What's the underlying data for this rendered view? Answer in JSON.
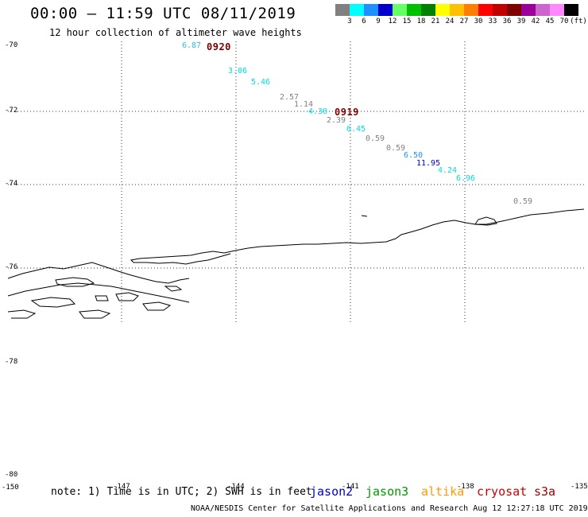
{
  "header": {
    "title": "00:00 — 11:59 UTC 08/11/2019",
    "subtitle": "12 hour collection of altimeter wave heights"
  },
  "color_scale": {
    "colors": [
      "#808080",
      "#00ffff",
      "#1e90ff",
      "#0000cd",
      "#66ff66",
      "#00c000",
      "#008000",
      "#ffff00",
      "#ffc000",
      "#ff8000",
      "#ff0000",
      "#c00000",
      "#800000",
      "#9b009b",
      "#cc66cc",
      "#ff88ff",
      "#000000"
    ],
    "labels": [
      "3",
      "6",
      "9",
      "12",
      "15",
      "18",
      "21",
      "24",
      "27",
      "30",
      "33",
      "36",
      "39",
      "42",
      "45",
      "70",
      "(ft)"
    ]
  },
  "lat_labels": [
    "-70",
    "-72",
    "-74",
    "-76",
    "-78",
    "-80"
  ],
  "lon_labels": [
    "-150",
    "-147",
    "-144",
    "-141",
    "-138",
    "-135"
  ],
  "measurements": [
    {
      "value": "6.87",
      "color": "#33bbdd"
    },
    {
      "value": "3.06",
      "color": "#00e0e0"
    },
    {
      "value": "5.46",
      "color": "#00e0e0"
    },
    {
      "value": "2.57",
      "color": "#808080"
    },
    {
      "value": "1.14",
      "color": "#808080"
    },
    {
      "value": "4.30",
      "color": "#00e0e0"
    },
    {
      "value": "2.39",
      "color": "#808080"
    },
    {
      "value": "6.45",
      "color": "#00e0e0"
    },
    {
      "value": "0.59",
      "color": "#808080"
    },
    {
      "value": "0.59",
      "color": "#808080"
    },
    {
      "value": "6.50",
      "color": "#1e90ff"
    },
    {
      "value": "11.95",
      "color": "#0000cd"
    },
    {
      "value": "4.24",
      "color": "#00e0e0"
    },
    {
      "value": "6.96",
      "color": "#00e0e0"
    },
    {
      "value": "0.59",
      "color": "#808080"
    }
  ],
  "time_labels": [
    "0920",
    "0919"
  ],
  "note": "note: 1) Time is in UTC; 2) SWH is in feet",
  "satellites": [
    {
      "name": "jason2",
      "color": "#0000cc"
    },
    {
      "name": "jason3",
      "color": "#009900"
    },
    {
      "name": "altika",
      "color": "#ff9900"
    },
    {
      "name": "cryosat",
      "color": "#cc0000"
    },
    {
      "name": "s3a",
      "color": "#990000"
    }
  ],
  "footer": "NOAA/NESDIS Center for Satellite Applications and Research   Aug 12 12:27:18 UTC 2019"
}
